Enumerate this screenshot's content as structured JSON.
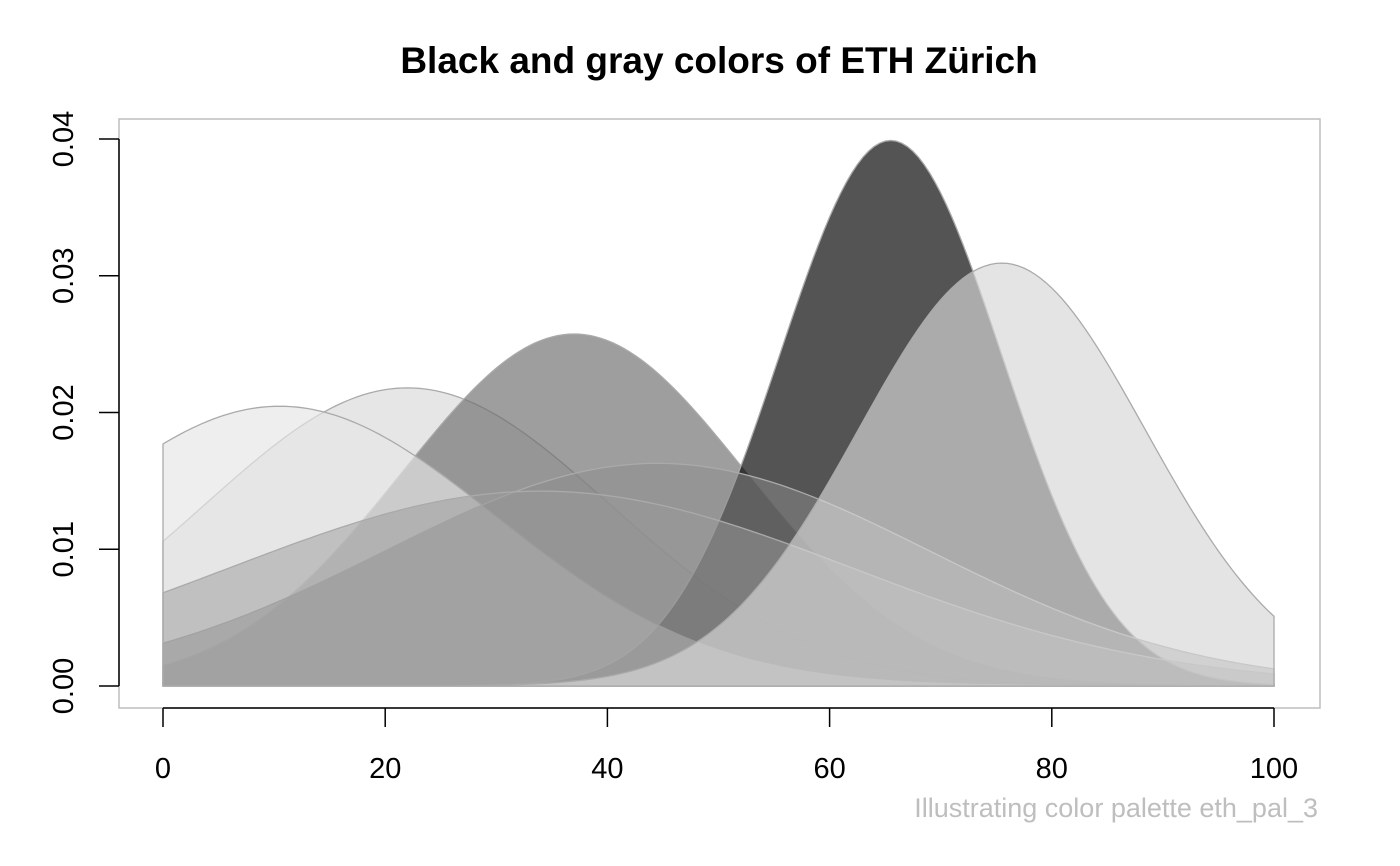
{
  "chart_data": {
    "type": "area",
    "title": "Black and gray colors of ETH Zürich",
    "caption": "Illustrating color palette eth_pal_3",
    "xlabel": "",
    "ylabel": "",
    "xlim": [
      0,
      100
    ],
    "ylim": [
      0,
      0.04
    ],
    "x_ticks": [
      "0",
      "20",
      "40",
      "60",
      "80",
      "100"
    ],
    "y_ticks": [
      "0.00",
      "0.01",
      "0.02",
      "0.03",
      "0.04"
    ],
    "grid": false,
    "legend": "none",
    "series": [
      {
        "distribution": "normal",
        "mean": 22,
        "sd": 18.3,
        "color": "#d9d9d9",
        "opacity": 0.67
      },
      {
        "distribution": "normal",
        "mean": 37,
        "sd": 15.5,
        "color": "#6f6f6f",
        "opacity": 0.67
      },
      {
        "distribution": "normal",
        "mean": 65.5,
        "sd": 10.0,
        "color": "#000000",
        "opacity": 0.67
      },
      {
        "distribution": "normal",
        "mean": 10.5,
        "sd": 19.5,
        "color": "#e6e6e6",
        "opacity": 0.67
      },
      {
        "distribution": "normal",
        "mean": 44.5,
        "sd": 24.5,
        "color": "#8c8c8c",
        "opacity": 0.5
      },
      {
        "distribution": "normal",
        "mean": 34,
        "sd": 28.0,
        "color": "#9a9a9a",
        "opacity": 0.5
      },
      {
        "distribution": "normal",
        "mean": 75.5,
        "sd": 12.9,
        "color": "#d6d6d6",
        "opacity": 0.67
      }
    ],
    "colors": {
      "axis": "#000000",
      "box": "#bebebe",
      "outline": "#aaaaaa",
      "caption": "#bebebe"
    }
  }
}
